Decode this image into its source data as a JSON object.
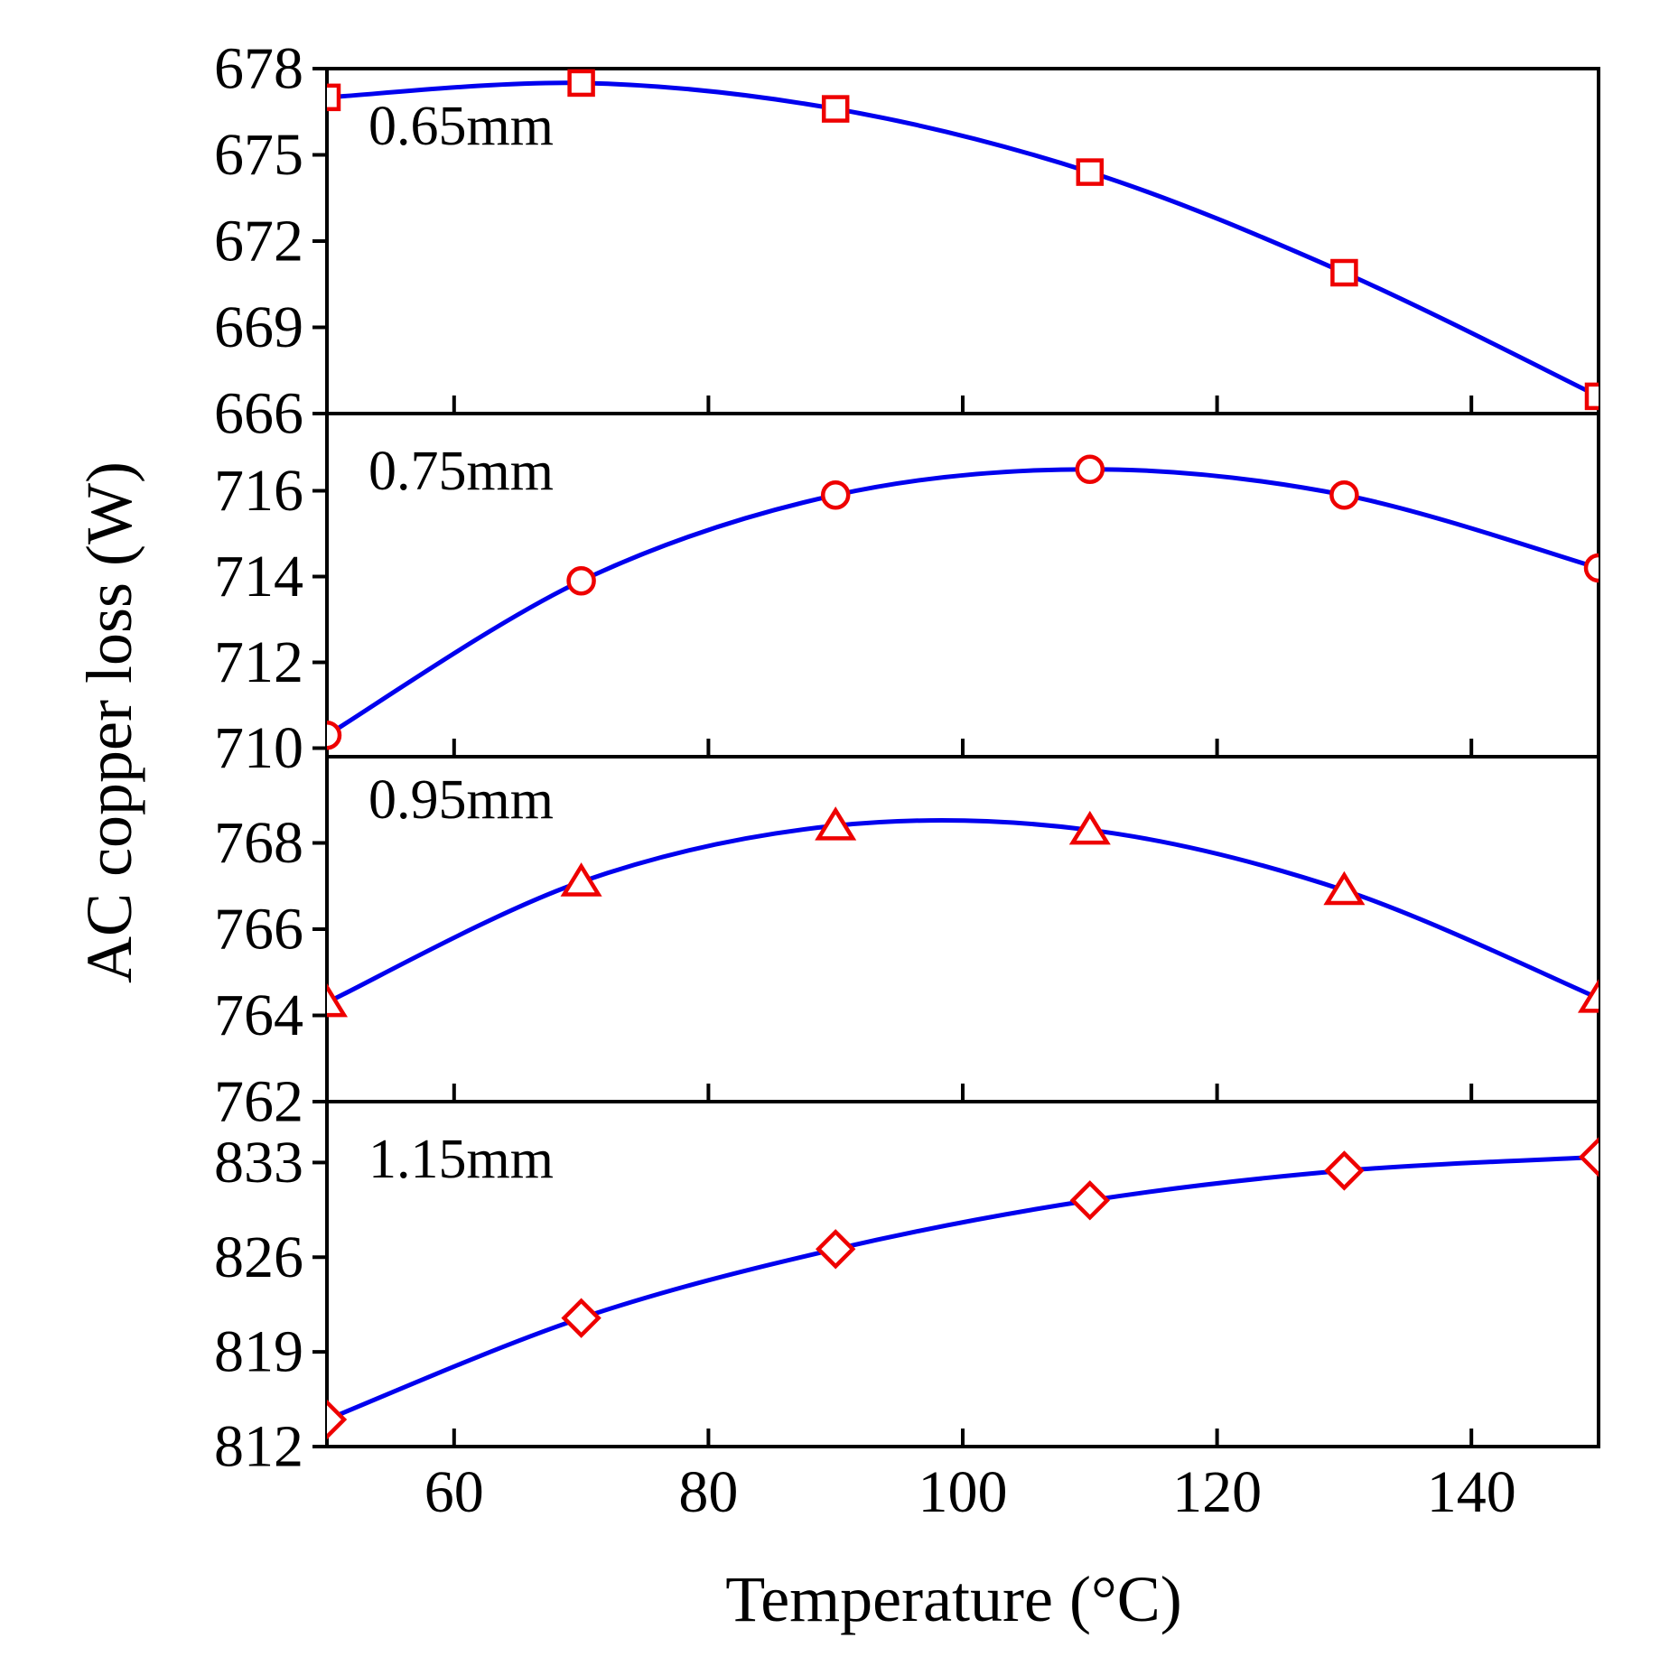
{
  "colors": {
    "line": "#0000ee",
    "marker": "#ee0000",
    "axis": "#000000",
    "background": "#ffffff"
  },
  "chart_data": {
    "type": "line",
    "xlabel": "Temperature (°C)",
    "ylabel": "AC copper loss (W)",
    "xlim": [
      50,
      150
    ],
    "xticks": [
      60,
      80,
      100,
      120,
      140
    ],
    "x_tick_labels": [
      "60",
      "80",
      "100",
      "120",
      "140"
    ],
    "x": [
      50,
      70,
      90,
      110,
      130,
      150
    ],
    "panels": [
      {
        "label": "0.65mm",
        "marker": "square",
        "ylim": [
          666,
          678
        ],
        "yticks": [
          666,
          669,
          672,
          675,
          678
        ],
        "y_tick_labels": [
          "666",
          "669",
          "672",
          "675",
          "678"
        ],
        "values": [
          677.0,
          677.5,
          676.6,
          674.4,
          670.9,
          666.6
        ]
      },
      {
        "label": "0.75mm",
        "marker": "circle",
        "ylim": [
          709.8,
          717.8
        ],
        "yticks": [
          710,
          712,
          714,
          716
        ],
        "y_tick_labels": [
          "710",
          "712",
          "714",
          "716"
        ],
        "values": [
          710.3,
          713.9,
          715.9,
          716.5,
          715.9,
          714.2
        ]
      },
      {
        "label": "0.95mm",
        "marker": "triangle",
        "ylim": [
          762,
          770
        ],
        "yticks": [
          762,
          764,
          766,
          768
        ],
        "y_tick_labels": [
          "762",
          "764",
          "766",
          "768"
        ],
        "values": [
          764.3,
          767.1,
          768.4,
          768.3,
          766.9,
          764.4
        ]
      },
      {
        "label": "1.15mm",
        "marker": "diamond",
        "ylim": [
          812,
          837.5
        ],
        "yticks": [
          812,
          819,
          826,
          833
        ],
        "y_tick_labels": [
          "812",
          "819",
          "826",
          "833"
        ],
        "values": [
          814,
          821.5,
          826.6,
          830.2,
          832.4,
          833.4
        ]
      }
    ]
  }
}
